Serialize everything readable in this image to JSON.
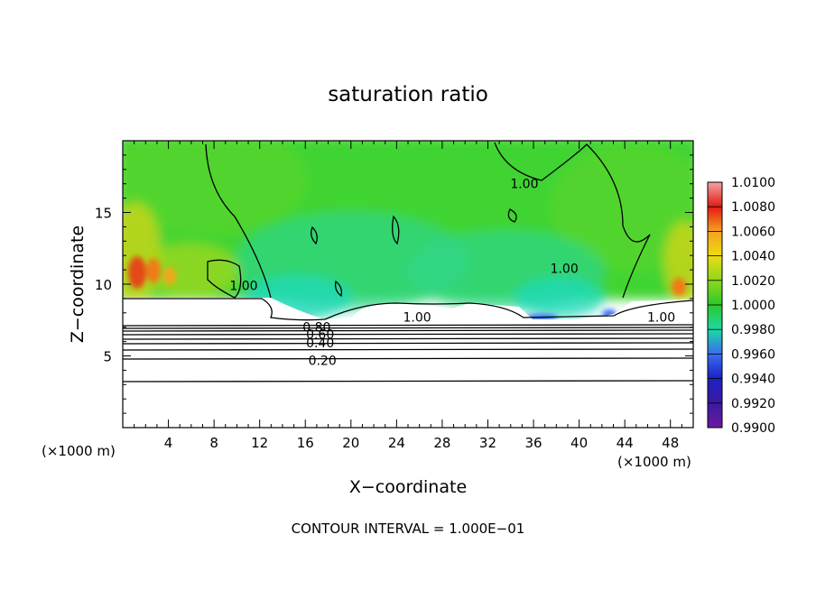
{
  "chart_data": {
    "type": "heatmap",
    "title": "saturation ratio",
    "xlabel": "X−coordinate",
    "ylabel": "Z−coordinate",
    "x_unit_left": "(×1000 m)",
    "x_unit_right": "(×1000 m)",
    "xlim": [
      0,
      50
    ],
    "ylim": [
      0,
      20
    ],
    "x_ticks": [
      4,
      8,
      12,
      16,
      20,
      24,
      28,
      32,
      36,
      40,
      44,
      48
    ],
    "y_ticks": [
      5,
      10,
      15
    ],
    "footer": "CONTOUR INTERVAL = 1.000E−01",
    "colorbar": {
      "min": 0.99,
      "max": 1.01,
      "labels": [
        "1.0100",
        "1.0080",
        "1.0060",
        "1.0040",
        "1.0020",
        "1.0000",
        "0.9980",
        "0.9960",
        "0.9940",
        "0.9920",
        "0.9900"
      ],
      "colors": [
        "#f3a3a3",
        "#e21a12",
        "#ef5a16",
        "#f7a01f",
        "#ecdc10",
        "#8cd81c",
        "#2ec82b",
        "#1bd9a5",
        "#3a6df0",
        "#1c21c4",
        "#3b1aa3",
        "#6a1aa0"
      ]
    },
    "contour_labels": [
      {
        "text": "1.00",
        "x": 35.2,
        "y": 17.0
      },
      {
        "text": "1.00",
        "x": 38.7,
        "y": 11.1
      },
      {
        "text": "1.00",
        "x": 25.8,
        "y": 7.7
      },
      {
        "text": "1.00",
        "x": 47.2,
        "y": 7.7
      },
      {
        "text": "1.00",
        "x": 10.6,
        "y": 9.9
      },
      {
        "text": "0.80",
        "x": 17.0,
        "y": 7.0
      },
      {
        "text": "0.60",
        "x": 17.3,
        "y": 6.5
      },
      {
        "text": "0.40",
        "x": 17.3,
        "y": 5.9
      },
      {
        "text": "0.20",
        "x": 17.5,
        "y": 4.7
      }
    ]
  }
}
